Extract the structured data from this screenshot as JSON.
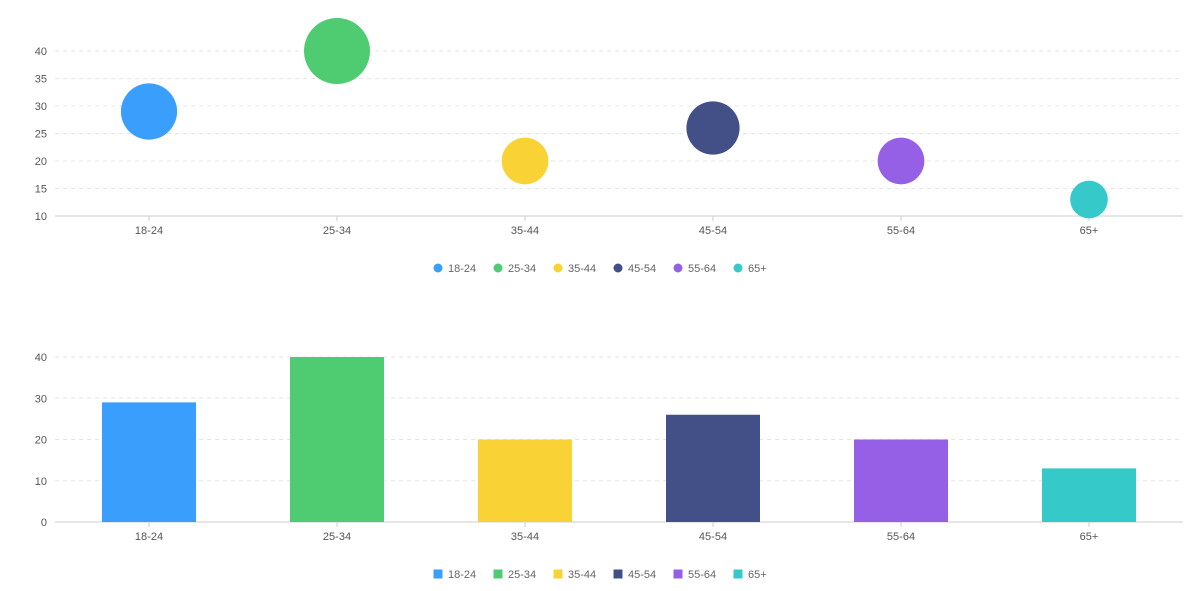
{
  "chart_data": [
    {
      "type": "scatter",
      "variant": "bubble",
      "categories": [
        "18-24",
        "25-34",
        "35-44",
        "45-54",
        "55-64",
        "65+"
      ],
      "values": [
        29,
        40,
        20,
        26,
        20,
        13
      ],
      "ylim": [
        10,
        40
      ],
      "yticks": [
        10,
        15,
        20,
        25,
        30,
        35,
        40
      ],
      "grid": true,
      "legend": "bottom-center",
      "legend_shape": "circle",
      "colors": [
        "#3a9efc",
        "#4fcb72",
        "#f9d335",
        "#435088",
        "#9660e6",
        "#35c9ca"
      ],
      "title": "",
      "xlabel": "",
      "ylabel": ""
    },
    {
      "type": "bar",
      "categories": [
        "18-24",
        "25-34",
        "35-44",
        "45-54",
        "55-64",
        "65+"
      ],
      "values": [
        29,
        40,
        20,
        26,
        20,
        13
      ],
      "ylim": [
        0,
        40
      ],
      "yticks": [
        0,
        10,
        20,
        30,
        40
      ],
      "grid": true,
      "legend": "bottom-center",
      "legend_shape": "square",
      "colors": [
        "#3a9efc",
        "#4fcb72",
        "#f9d335",
        "#435088",
        "#9660e6",
        "#35c9ca"
      ],
      "title": "",
      "xlabel": "",
      "ylabel": ""
    }
  ]
}
